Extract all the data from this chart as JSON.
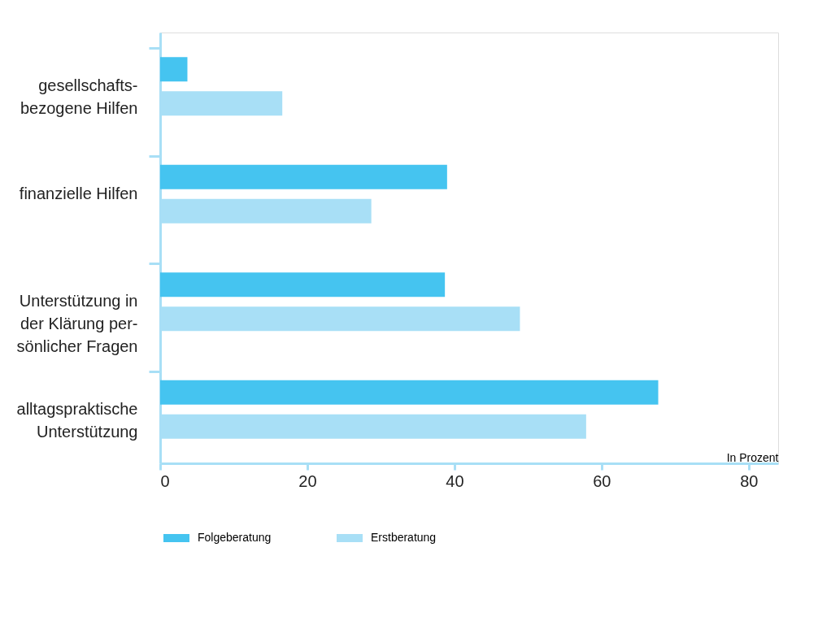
{
  "chart_data": {
    "type": "bar",
    "orientation": "horizontal",
    "xlabel": "In Prozent",
    "categories": [
      "gesellschafts-\nbezogene Hilfen",
      "finanzielle Hilfen",
      "Unterstützung in\nder Klärung per-\nsönlicher Fragen",
      "alltagspraktische\nUnterstützung"
    ],
    "series": [
      {
        "name": "Folgeberatung",
        "color": "#45c4f0",
        "values": [
          3.7,
          39.0,
          38.7,
          67.7
        ]
      },
      {
        "name": "Erstberatung",
        "color": "#a8dff6",
        "values": [
          16.6,
          28.7,
          48.9,
          57.9
        ]
      }
    ],
    "xlim": [
      0,
      84
    ],
    "xticks": [
      0,
      20,
      40,
      60,
      80
    ],
    "grid": false,
    "legend": "bottom"
  }
}
